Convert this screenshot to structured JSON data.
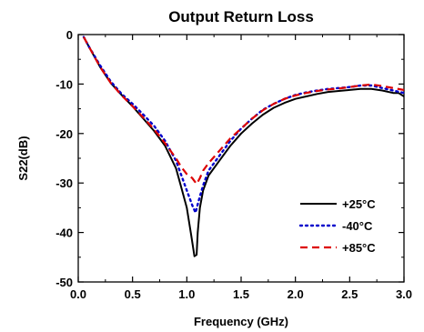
{
  "chart_data": {
    "type": "line",
    "title": "Output Return Loss",
    "xlabel": "Frequency (GHz)",
    "ylabel": "S22(dB)",
    "xlim": [
      0.0,
      3.0
    ],
    "ylim": [
      -50,
      0
    ],
    "x_ticks": [
      "0.0",
      "0.5",
      "1.0",
      "1.5",
      "2.0",
      "2.5",
      "3.0"
    ],
    "y_ticks": [
      "0",
      "-10",
      "-20",
      "-30",
      "-40",
      "-50"
    ],
    "grid": false,
    "legend_position": "bottom-right",
    "series": [
      {
        "name": "+25°C",
        "color": "#000000",
        "dash": "solid",
        "points": [
          [
            0.05,
            -0.5
          ],
          [
            0.1,
            -2.5
          ],
          [
            0.2,
            -6.5
          ],
          [
            0.3,
            -9.8
          ],
          [
            0.4,
            -12.2
          ],
          [
            0.5,
            -14.5
          ],
          [
            0.6,
            -17.0
          ],
          [
            0.7,
            -19.5
          ],
          [
            0.8,
            -22.5
          ],
          [
            0.9,
            -27.0
          ],
          [
            0.95,
            -31.0
          ],
          [
            1.0,
            -35.0
          ],
          [
            1.04,
            -40.5
          ],
          [
            1.07,
            -44.8
          ],
          [
            1.09,
            -44.5
          ],
          [
            1.1,
            -40.0
          ],
          [
            1.12,
            -35.0
          ],
          [
            1.15,
            -31.5
          ],
          [
            1.2,
            -28.5
          ],
          [
            1.3,
            -25.5
          ],
          [
            1.4,
            -22.5
          ],
          [
            1.5,
            -20.0
          ],
          [
            1.6,
            -18.0
          ],
          [
            1.7,
            -16.2
          ],
          [
            1.8,
            -14.8
          ],
          [
            1.9,
            -13.8
          ],
          [
            2.0,
            -13.0
          ],
          [
            2.1,
            -12.5
          ],
          [
            2.2,
            -12.0
          ],
          [
            2.3,
            -11.6
          ],
          [
            2.4,
            -11.4
          ],
          [
            2.5,
            -11.2
          ],
          [
            2.6,
            -11.0
          ],
          [
            2.7,
            -11.0
          ],
          [
            2.8,
            -11.3
          ],
          [
            2.9,
            -11.8
          ],
          [
            2.95,
            -11.8
          ],
          [
            3.0,
            -12.5
          ]
        ]
      },
      {
        "name": "-40°C",
        "color": "#0000cc",
        "dash": "dotted",
        "points": [
          [
            0.05,
            -0.5
          ],
          [
            0.1,
            -2.5
          ],
          [
            0.2,
            -6.2
          ],
          [
            0.3,
            -9.5
          ],
          [
            0.4,
            -12.0
          ],
          [
            0.5,
            -14.0
          ],
          [
            0.6,
            -16.2
          ],
          [
            0.7,
            -18.5
          ],
          [
            0.8,
            -21.5
          ],
          [
            0.9,
            -25.5
          ],
          [
            0.95,
            -28.5
          ],
          [
            1.0,
            -31.5
          ],
          [
            1.05,
            -34.5
          ],
          [
            1.08,
            -36.0
          ],
          [
            1.11,
            -33.5
          ],
          [
            1.15,
            -30.5
          ],
          [
            1.2,
            -27.5
          ],
          [
            1.3,
            -24.5
          ],
          [
            1.4,
            -21.5
          ],
          [
            1.5,
            -19.0
          ],
          [
            1.6,
            -17.0
          ],
          [
            1.7,
            -15.2
          ],
          [
            1.8,
            -14.0
          ],
          [
            1.9,
            -13.0
          ],
          [
            2.0,
            -12.2
          ],
          [
            2.1,
            -11.7
          ],
          [
            2.2,
            -11.3
          ],
          [
            2.3,
            -11.0
          ],
          [
            2.4,
            -10.8
          ],
          [
            2.5,
            -10.6
          ],
          [
            2.6,
            -10.3
          ],
          [
            2.7,
            -10.3
          ],
          [
            2.8,
            -10.8
          ],
          [
            2.9,
            -11.3
          ],
          [
            3.0,
            -11.8
          ]
        ]
      },
      {
        "name": "+85°C",
        "color": "#dd0000",
        "dash": "dashed",
        "points": [
          [
            0.05,
            -0.5
          ],
          [
            0.1,
            -2.5
          ],
          [
            0.2,
            -6.5
          ],
          [
            0.3,
            -9.8
          ],
          [
            0.4,
            -12.3
          ],
          [
            0.5,
            -14.5
          ],
          [
            0.6,
            -16.8
          ],
          [
            0.7,
            -19.2
          ],
          [
            0.8,
            -22.0
          ],
          [
            0.9,
            -25.0
          ],
          [
            0.95,
            -26.8
          ],
          [
            1.0,
            -28.2
          ],
          [
            1.05,
            -29.0
          ],
          [
            1.09,
            -30.2
          ],
          [
            1.12,
            -29.0
          ],
          [
            1.15,
            -27.5
          ],
          [
            1.2,
            -26.0
          ],
          [
            1.3,
            -23.5
          ],
          [
            1.4,
            -21.0
          ],
          [
            1.5,
            -19.0
          ],
          [
            1.6,
            -17.0
          ],
          [
            1.7,
            -15.3
          ],
          [
            1.8,
            -14.0
          ],
          [
            1.9,
            -13.0
          ],
          [
            2.0,
            -12.3
          ],
          [
            2.1,
            -11.8
          ],
          [
            2.2,
            -11.4
          ],
          [
            2.3,
            -11.1
          ],
          [
            2.4,
            -10.9
          ],
          [
            2.5,
            -10.6
          ],
          [
            2.6,
            -10.3
          ],
          [
            2.7,
            -10.1
          ],
          [
            2.8,
            -10.4
          ],
          [
            2.9,
            -10.8
          ],
          [
            3.0,
            -11.2
          ]
        ]
      }
    ]
  }
}
